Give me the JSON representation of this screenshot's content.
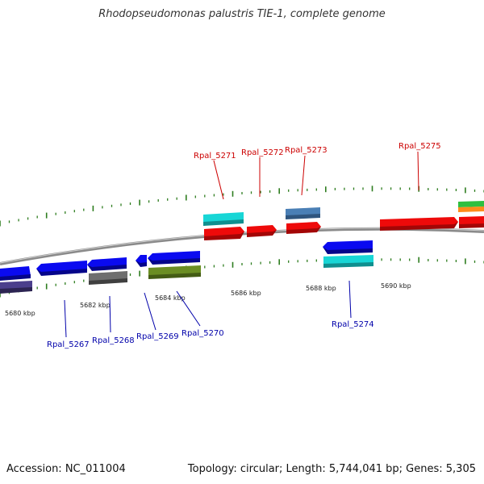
{
  "title": "Rhodopseudomonas palustris TIE-1, complete genome",
  "footer": {
    "accession": "Accession: NC_011004",
    "info": "Topology: circular; Length: 5,744,041 bp; Genes: 5,305"
  },
  "colors": {
    "backbone": "#8a8a8a",
    "tick": "#2e7d1f",
    "label_forward": "#cc0000",
    "label_reverse": "#0000aa",
    "blue": "#0a0af0",
    "red": "#ee0a0a",
    "cyan": "#18d6d6",
    "gray": "#6e6e6e",
    "olive": "#6b8e23",
    "steelblue": "#4a7fb5",
    "slate": "#4b3f8c",
    "green": "#2fbf3f",
    "orange": "#ff8c1a"
  },
  "scale_labels": [
    "5680 kbp",
    "5682 kbp",
    "5684 kbp",
    "5686 kbp",
    "5688 kbp",
    "5690 kbp"
  ],
  "forward_labels": [
    "Rpal_5271",
    "Rpal_5272",
    "Rpal_5273",
    "Rpal_5275"
  ],
  "reverse_labels": [
    "Rpal_5267",
    "Rpal_5268",
    "Rpal_5269",
    "Rpal_5270",
    "Rpal_5274"
  ]
}
